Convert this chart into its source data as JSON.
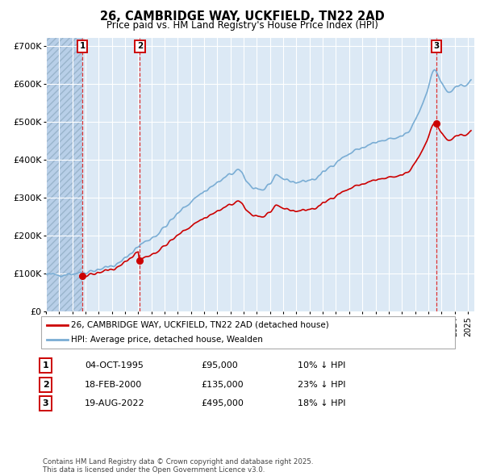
{
  "title": "26, CAMBRIDGE WAY, UCKFIELD, TN22 2AD",
  "subtitle": "Price paid vs. HM Land Registry's House Price Index (HPI)",
  "background_color": "#ffffff",
  "plot_bg_color": "#dce9f5",
  "hatch_region_color": "#b8cfe8",
  "hatch_edge_color": "#9ab5cc",
  "grid_color": "#ffffff",
  "hpi_color": "#7aadd4",
  "price_color": "#cc0000",
  "vline_color": "#dd3333",
  "purchases": [
    {
      "date": "1995-10-04",
      "price": 95000,
      "label": "1"
    },
    {
      "date": "2000-02-18",
      "price": 135000,
      "label": "2"
    },
    {
      "date": "2022-08-19",
      "price": 495000,
      "label": "3"
    }
  ],
  "table_rows": [
    [
      "1",
      "04-OCT-1995",
      "£95,000",
      "10% ↓ HPI"
    ],
    [
      "2",
      "18-FEB-2000",
      "£135,000",
      "23% ↓ HPI"
    ],
    [
      "3",
      "19-AUG-2022",
      "£495,000",
      "18% ↓ HPI"
    ]
  ],
  "legend_entries": [
    "26, CAMBRIDGE WAY, UCKFIELD, TN22 2AD (detached house)",
    "HPI: Average price, detached house, Wealden"
  ],
  "footer": "Contains HM Land Registry data © Crown copyright and database right 2025.\nThis data is licensed under the Open Government Licence v3.0.",
  "ylim": [
    0,
    720000
  ],
  "yticks": [
    0,
    100000,
    200000,
    300000,
    400000,
    500000,
    600000,
    700000
  ],
  "ytick_labels": [
    "£0",
    "£100K",
    "£200K",
    "£300K",
    "£400K",
    "£500K",
    "£600K",
    "£700K"
  ]
}
